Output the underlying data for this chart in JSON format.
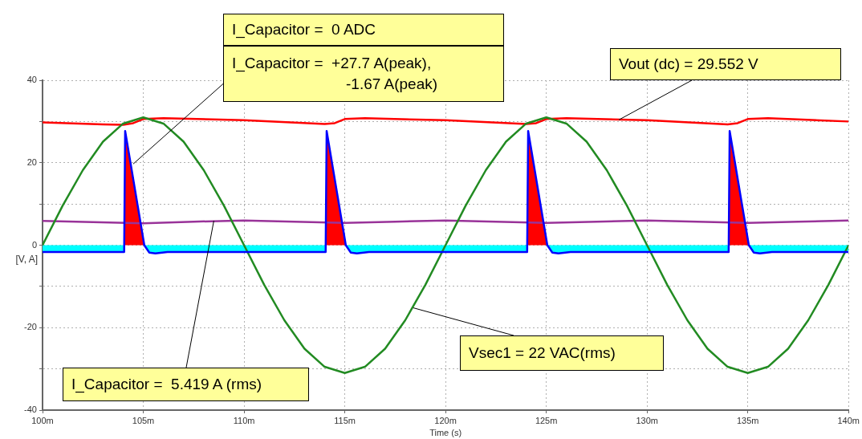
{
  "chart_data": {
    "type": "line",
    "xlabel": "Time (s)",
    "ylabel": "[V, A]",
    "xlim": [
      100,
      140
    ],
    "xticks": [
      {
        "value": 100,
        "label": "100m"
      },
      {
        "value": 105,
        "label": "105m"
      },
      {
        "value": 110,
        "label": "110m"
      },
      {
        "value": 115,
        "label": "115m"
      },
      {
        "value": 120,
        "label": "120m"
      },
      {
        "value": 125,
        "label": "125m"
      },
      {
        "value": 130,
        "label": "130m"
      },
      {
        "value": 135,
        "label": "135m"
      },
      {
        "value": 140,
        "label": "140m"
      }
    ],
    "ylim": [
      -40,
      40
    ],
    "yticks": [
      40,
      {
        "value": 30,
        "label": null
      },
      20,
      {
        "value": 10,
        "label": null
      },
      0,
      {
        "value": -10,
        "label": null
      },
      -20,
      {
        "value": -30,
        "label": null
      },
      -40
    ],
    "grid": true,
    "legend": false,
    "marker": "none",
    "line_style": "solid",
    "series": [
      {
        "type": "area",
        "color": "#ff0000",
        "x": [
          100,
          104.05,
          104.1,
          105.05,
          114.05,
          114.1,
          115.05,
          124.05,
          124.1,
          125.05,
          134.05,
          134.1,
          135.05,
          140
        ],
        "values": [
          0,
          0,
          27.7,
          0,
          0,
          27.7,
          0,
          0,
          27.7,
          0,
          0,
          27.7,
          0,
          0
        ]
      },
      {
        "type": "area",
        "color": "#00ffff",
        "x": [
          100,
          104.05,
          104.1,
          105.05,
          105.3,
          105.6,
          106.2,
          114.05,
          114.1,
          115.05,
          115.3,
          115.6,
          116.2,
          124.05,
          124.1,
          125.05,
          125.3,
          125.6,
          126.2,
          134.05,
          134.1,
          135.05,
          135.3,
          135.6,
          136.2,
          140
        ],
        "values": [
          -1.67,
          -1.67,
          0,
          0,
          -1.8,
          -2.0,
          -1.67,
          -1.67,
          0,
          0,
          -1.8,
          -2.0,
          -1.67,
          -1.67,
          0,
          0,
          -1.8,
          -2.0,
          -1.67,
          -1.67,
          0,
          0,
          -1.8,
          -2.0,
          -1.67,
          -1.67
        ]
      },
      {
        "color": "#ff0000",
        "x": [
          100,
          103,
          104,
          104.5,
          105,
          106,
          110,
          114,
          114.5,
          115,
          116,
          120,
          124,
          124.5,
          125,
          126,
          130,
          134,
          134.5,
          135,
          136,
          140
        ],
        "values": [
          29.8,
          29.3,
          29.2,
          29.6,
          30.6,
          30.8,
          30.3,
          29.4,
          29.6,
          30.6,
          30.8,
          30.3,
          29.4,
          29.6,
          30.6,
          30.8,
          30.3,
          29.3,
          29.6,
          30.6,
          30.8,
          30.0
        ]
      },
      {
        "color": "#993399",
        "x": [
          100,
          102.5,
          105,
          107.5,
          110,
          112.5,
          115,
          117.5,
          120,
          122.5,
          125,
          127.5,
          130,
          132.5,
          135,
          137.5,
          140
        ],
        "values": [
          5.9,
          5.6,
          5.3,
          5.7,
          6.0,
          5.7,
          5.4,
          5.7,
          6.0,
          5.7,
          5.4,
          5.7,
          6.0,
          5.7,
          5.4,
          5.7,
          6.0
        ]
      },
      {
        "color": "#228b22",
        "x": [
          100,
          101,
          102,
          103,
          104,
          105,
          106,
          107,
          108,
          109,
          110,
          111,
          112,
          113,
          114,
          115,
          116,
          117,
          118,
          119,
          120,
          121,
          122,
          123,
          124,
          125,
          126,
          127,
          128,
          129,
          130,
          131,
          132,
          133,
          134,
          135,
          136,
          137,
          138,
          139,
          140
        ],
        "values": [
          0,
          9.6,
          18.2,
          25.1,
          29.5,
          31,
          29.5,
          25.1,
          18.2,
          9.6,
          0,
          -9.6,
          -18.2,
          -25.1,
          -29.5,
          -31,
          -29.5,
          -25.1,
          -18.2,
          -9.6,
          0,
          9.6,
          18.2,
          25.1,
          29.5,
          31,
          29.5,
          25.1,
          18.2,
          9.6,
          0,
          -9.6,
          -18.2,
          -25.1,
          -29.5,
          -31,
          -29.5,
          -25.1,
          -18.2,
          -9.6,
          0
        ]
      },
      {
        "color": "#0000ff",
        "x": [
          100,
          104.05,
          104.1,
          105.05,
          105.3,
          105.6,
          106.2,
          114.05,
          114.1,
          115.05,
          115.3,
          115.6,
          116.2,
          124.05,
          124.1,
          125.05,
          125.3,
          125.6,
          126.2,
          134.05,
          134.1,
          135.05,
          135.3,
          135.6,
          136.2,
          140
        ],
        "values": [
          -1.67,
          -1.67,
          27.7,
          0,
          -1.8,
          -2.0,
          -1.67,
          -1.67,
          27.7,
          0,
          -1.8,
          -2.0,
          -1.67,
          -1.67,
          27.7,
          0,
          -1.8,
          -2.0,
          -1.67,
          -1.67,
          27.7,
          0,
          -1.8,
          -2.0,
          -1.67,
          -1.67
        ]
      }
    ],
    "annotations": [
      "I_Capacitor =  0 ADC",
      {
        "text": "I_Capacitor =  +27.7 A(peak),\n-1.67 A(peak)",
        "x": 104.5,
        "y": 19.7
      },
      {
        "text": "Vout (dc) = 29.552 V",
        "x": 128.6,
        "y": 30.4
      },
      {
        "text": "Vsec1 = 22 VAC(rms)",
        "x": 118.4,
        "y": -15.2
      },
      {
        "text": "I_Capacitor =  5.419 A (rms)",
        "x": 108.5,
        "y": 5.9
      }
    ]
  }
}
